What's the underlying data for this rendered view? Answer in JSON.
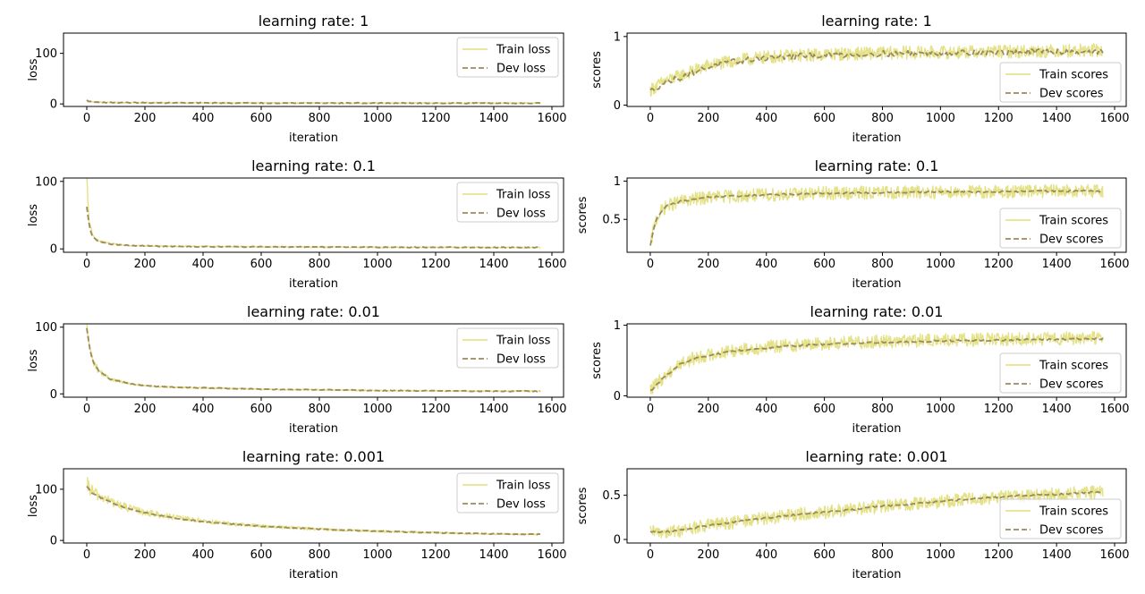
{
  "chart_data": [
    {
      "type": "line",
      "title": "learning rate: 1",
      "xlabel": "iteration",
      "ylabel": "loss",
      "xlim": [
        -80,
        1640
      ],
      "ylim": [
        -5,
        140
      ],
      "xticks": [
        0,
        200,
        400,
        600,
        800,
        1000,
        1200,
        1400,
        1600
      ],
      "yticks": [
        0,
        100
      ],
      "series": [
        {
          "name": "Train loss",
          "style": "solid",
          "color": "#e1df7a",
          "x": [
            0,
            5,
            10,
            20,
            40,
            80,
            150,
            300,
            600,
            1000,
            1560
          ],
          "values": [
            8,
            6,
            5,
            4,
            3.5,
            3,
            2.5,
            2,
            1.8,
            1.6,
            1.5
          ]
        },
        {
          "name": "Dev loss",
          "style": "dashed",
          "color": "#9c8a5e",
          "x": [
            0,
            5,
            10,
            20,
            40,
            80,
            150,
            300,
            600,
            1000,
            1560
          ],
          "values": [
            7,
            5.5,
            4.5,
            3.8,
            3.2,
            2.8,
            2.4,
            2,
            1.8,
            1.6,
            1.5
          ]
        }
      ],
      "legend": {
        "position": "top-right",
        "entries": [
          "Train loss",
          "Dev loss"
        ]
      }
    },
    {
      "type": "line",
      "title": "learning rate: 1",
      "xlabel": "iteration",
      "ylabel": "scores",
      "xlim": [
        -80,
        1640
      ],
      "ylim": [
        -0.02,
        1.05
      ],
      "xticks": [
        0,
        200,
        400,
        600,
        800,
        1000,
        1200,
        1400,
        1600
      ],
      "yticks": [
        0,
        1
      ],
      "series": [
        {
          "name": "Train scores",
          "style": "solid",
          "color": "#e1df7a",
          "x": [
            0,
            50,
            100,
            150,
            200,
            300,
            400,
            600,
            800,
            1000,
            1200,
            1400,
            1560
          ],
          "values": [
            0.22,
            0.35,
            0.42,
            0.5,
            0.58,
            0.65,
            0.7,
            0.74,
            0.76,
            0.77,
            0.78,
            0.79,
            0.8
          ]
        },
        {
          "name": "Dev scores",
          "style": "dashed",
          "color": "#9c8a5e",
          "x": [
            0,
            50,
            100,
            150,
            200,
            300,
            400,
            600,
            800,
            1000,
            1200,
            1400,
            1560
          ],
          "values": [
            0.2,
            0.33,
            0.4,
            0.48,
            0.56,
            0.64,
            0.69,
            0.73,
            0.75,
            0.76,
            0.77,
            0.78,
            0.78
          ]
        }
      ],
      "legend": {
        "position": "bottom-right",
        "entries": [
          "Train scores",
          "Dev scores"
        ]
      }
    },
    {
      "type": "line",
      "title": "learning rate: 0.1",
      "xlabel": "iteration",
      "ylabel": "loss",
      "xlim": [
        -80,
        1640
      ],
      "ylim": [
        -5,
        105
      ],
      "xticks": [
        0,
        200,
        400,
        600,
        800,
        1000,
        1200,
        1400,
        1600
      ],
      "yticks": [
        0,
        100
      ],
      "series": [
        {
          "name": "Train loss",
          "style": "solid",
          "color": "#e1df7a",
          "x": [
            0,
            5,
            10,
            20,
            40,
            80,
            150,
            300,
            600,
            1000,
            1560
          ],
          "values": [
            100,
            60,
            35,
            20,
            12,
            8,
            5,
            4,
            3,
            2.5,
            2
          ]
        },
        {
          "name": "Dev loss",
          "style": "dashed",
          "color": "#9c8a5e",
          "x": [
            0,
            5,
            10,
            20,
            40,
            80,
            150,
            300,
            600,
            1000,
            1560
          ],
          "values": [
            62,
            45,
            30,
            18,
            11,
            7,
            5,
            3.5,
            3,
            2.5,
            2
          ]
        }
      ],
      "legend": {
        "position": "top-right",
        "entries": [
          "Train loss",
          "Dev loss"
        ]
      }
    },
    {
      "type": "line",
      "title": "learning rate: 0.1",
      "xlabel": "iteration",
      "ylabel": "scores",
      "xlim": [
        -80,
        1640
      ],
      "ylim": [
        0.07,
        1.04
      ],
      "xticks": [
        0,
        200,
        400,
        600,
        800,
        1000,
        1200,
        1400,
        1600
      ],
      "yticks": [
        0.5,
        1.0
      ],
      "series": [
        {
          "name": "Train scores",
          "style": "solid",
          "color": "#e1df7a",
          "x": [
            0,
            10,
            20,
            40,
            60,
            100,
            200,
            400,
            600,
            800,
            1000,
            1200,
            1400,
            1560
          ],
          "values": [
            0.15,
            0.35,
            0.5,
            0.62,
            0.68,
            0.73,
            0.79,
            0.82,
            0.84,
            0.85,
            0.86,
            0.86,
            0.87,
            0.87
          ]
        },
        {
          "name": "Dev scores",
          "style": "dashed",
          "color": "#9c8a5e",
          "x": [
            0,
            10,
            20,
            40,
            60,
            100,
            200,
            400,
            600,
            800,
            1000,
            1200,
            1400,
            1560
          ],
          "values": [
            0.15,
            0.35,
            0.5,
            0.62,
            0.68,
            0.73,
            0.79,
            0.82,
            0.84,
            0.85,
            0.86,
            0.86,
            0.87,
            0.87
          ]
        }
      ],
      "legend": {
        "position": "bottom-right",
        "entries": [
          "Train scores",
          "Dev scores"
        ]
      }
    },
    {
      "type": "line",
      "title": "learning rate: 0.01",
      "xlabel": "iteration",
      "ylabel": "loss",
      "xlim": [
        -80,
        1640
      ],
      "ylim": [
        -5,
        105
      ],
      "xticks": [
        0,
        200,
        400,
        600,
        800,
        1000,
        1200,
        1400,
        1600
      ],
      "yticks": [
        0,
        100
      ],
      "series": [
        {
          "name": "Train loss",
          "style": "solid",
          "color": "#e1df7a",
          "x": [
            0,
            10,
            20,
            40,
            80,
            150,
            200,
            300,
            400,
            600,
            800,
            1000,
            1200,
            1400,
            1560
          ],
          "values": [
            100,
            70,
            50,
            35,
            22,
            15,
            12,
            10,
            9,
            7,
            6,
            5,
            4.5,
            4,
            4
          ]
        },
        {
          "name": "Dev loss",
          "style": "dashed",
          "color": "#9c8a5e",
          "x": [
            0,
            10,
            20,
            40,
            80,
            150,
            200,
            300,
            400,
            600,
            800,
            1000,
            1200,
            1400,
            1560
          ],
          "values": [
            98,
            68,
            50,
            35,
            22,
            15,
            12,
            10,
            9,
            7,
            6,
            5,
            4.5,
            4,
            4
          ]
        }
      ],
      "legend": {
        "position": "top-right",
        "entries": [
          "Train loss",
          "Dev loss"
        ]
      }
    },
    {
      "type": "line",
      "title": "learning rate: 0.01",
      "xlabel": "iteration",
      "ylabel": "scores",
      "xlim": [
        -80,
        1640
      ],
      "ylim": [
        -0.02,
        1.02
      ],
      "xticks": [
        0,
        200,
        400,
        600,
        800,
        1000,
        1200,
        1400,
        1600
      ],
      "yticks": [
        0,
        1
      ],
      "series": [
        {
          "name": "Train scores",
          "style": "solid",
          "color": "#e1df7a",
          "x": [
            0,
            50,
            100,
            150,
            200,
            300,
            400,
            500,
            600,
            800,
            1000,
            1200,
            1400,
            1560
          ],
          "values": [
            0.08,
            0.28,
            0.45,
            0.53,
            0.58,
            0.65,
            0.69,
            0.72,
            0.74,
            0.77,
            0.79,
            0.8,
            0.81,
            0.82
          ]
        },
        {
          "name": "Dev scores",
          "style": "dashed",
          "color": "#9c8a5e",
          "x": [
            0,
            50,
            100,
            150,
            200,
            300,
            400,
            500,
            600,
            800,
            1000,
            1200,
            1400,
            1560
          ],
          "values": [
            0.07,
            0.27,
            0.44,
            0.52,
            0.57,
            0.64,
            0.68,
            0.71,
            0.73,
            0.76,
            0.78,
            0.79,
            0.8,
            0.81
          ]
        }
      ],
      "legend": {
        "position": "bottom-right",
        "entries": [
          "Train scores",
          "Dev scores"
        ]
      }
    },
    {
      "type": "line",
      "title": "learning rate: 0.001",
      "xlabel": "iteration",
      "ylabel": "loss",
      "xlim": [
        -80,
        1640
      ],
      "ylim": [
        -5,
        140
      ],
      "xticks": [
        0,
        200,
        400,
        600,
        800,
        1000,
        1200,
        1400,
        1600
      ],
      "yticks": [
        0,
        100
      ],
      "series": [
        {
          "name": "Train loss",
          "style": "solid",
          "color": "#e1df7a",
          "x": [
            0,
            20,
            50,
            100,
            150,
            200,
            300,
            400,
            500,
            600,
            800,
            1000,
            1200,
            1400,
            1560
          ],
          "values": [
            108,
            95,
            85,
            72,
            62,
            55,
            45,
            38,
            32,
            28,
            22,
            18,
            15,
            13,
            12
          ]
        },
        {
          "name": "Dev loss",
          "style": "dashed",
          "color": "#9c8a5e",
          "x": [
            0,
            20,
            50,
            100,
            150,
            200,
            300,
            400,
            500,
            600,
            800,
            1000,
            1200,
            1400,
            1560
          ],
          "values": [
            105,
            92,
            83,
            70,
            61,
            54,
            44,
            37,
            32,
            28,
            22,
            18,
            15,
            13,
            12
          ]
        }
      ],
      "legend": {
        "position": "top-right",
        "entries": [
          "Train loss",
          "Dev loss"
        ]
      }
    },
    {
      "type": "line",
      "title": "learning rate: 0.001",
      "xlabel": "iteration",
      "ylabel": "scores",
      "xlim": [
        -80,
        1640
      ],
      "ylim": [
        -0.04,
        0.8
      ],
      "xticks": [
        0,
        200,
        400,
        600,
        800,
        1000,
        1200,
        1400,
        1600
      ],
      "yticks": [
        0.0,
        0.5
      ],
      "series": [
        {
          "name": "Train scores",
          "style": "solid",
          "color": "#e1df7a",
          "x": [
            0,
            100,
            200,
            300,
            400,
            500,
            600,
            700,
            800,
            900,
            1000,
            1100,
            1200,
            1300,
            1400,
            1500,
            1560
          ],
          "values": [
            0.08,
            0.1,
            0.16,
            0.2,
            0.24,
            0.28,
            0.31,
            0.34,
            0.38,
            0.4,
            0.43,
            0.46,
            0.48,
            0.5,
            0.51,
            0.53,
            0.54
          ]
        },
        {
          "name": "Dev scores",
          "style": "dashed",
          "color": "#9c8a5e",
          "x": [
            0,
            100,
            200,
            300,
            400,
            500,
            600,
            700,
            800,
            900,
            1000,
            1100,
            1200,
            1300,
            1400,
            1500,
            1560
          ],
          "values": [
            0.08,
            0.1,
            0.16,
            0.2,
            0.24,
            0.28,
            0.31,
            0.34,
            0.38,
            0.4,
            0.43,
            0.46,
            0.48,
            0.5,
            0.51,
            0.53,
            0.54
          ]
        }
      ],
      "legend": {
        "position": "bottom-right",
        "entries": [
          "Train scores",
          "Dev scores"
        ]
      }
    }
  ]
}
